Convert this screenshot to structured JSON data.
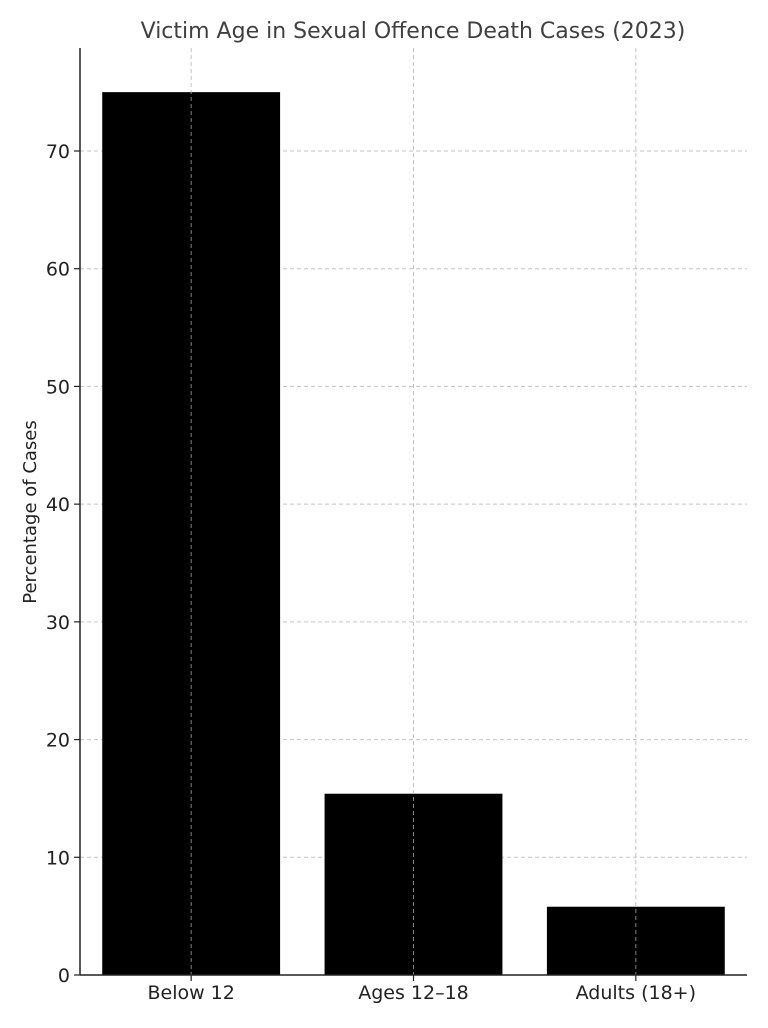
{
  "chart_data": {
    "type": "bar",
    "title": "Victim Age in Sexual Offence Death Cases (2023)",
    "xlabel": "",
    "ylabel": "Percentage of Cases",
    "categories": [
      "Below 12",
      "Ages 12–18",
      "Adults (18+)"
    ],
    "values": [
      75,
      15.4,
      5.8
    ],
    "ylim": [
      0,
      78.75
    ],
    "yticks": [
      0,
      10,
      20,
      30,
      40,
      50,
      60,
      70
    ],
    "grid": true,
    "bar_color": "#000000"
  }
}
